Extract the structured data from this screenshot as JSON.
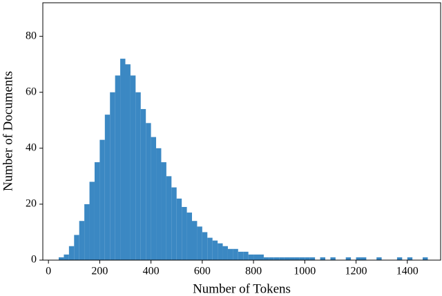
{
  "chart_data": {
    "type": "histogram",
    "xlabel": "Number of Tokens",
    "ylabel": "Number of Documents",
    "color": "#3b88c3",
    "bins": [
      40,
      60,
      80,
      100,
      120,
      140,
      160,
      180,
      200,
      220,
      240,
      260,
      280,
      300,
      320,
      340,
      360,
      380,
      400,
      420,
      440,
      460,
      480,
      500,
      520,
      540,
      560,
      580,
      600,
      620,
      640,
      660,
      680,
      700,
      720,
      740,
      760,
      780,
      800,
      820,
      840,
      860,
      880,
      900,
      920,
      940,
      960,
      980,
      1000,
      1020,
      1040,
      1060,
      1080,
      1100,
      1120,
      1140,
      1160,
      1180,
      1200,
      1220,
      1240,
      1260,
      1280,
      1300,
      1320,
      1340,
      1360,
      1380,
      1400,
      1420,
      1440,
      1460,
      1480
    ],
    "values": [
      1,
      2,
      5,
      9,
      14,
      20,
      28,
      35,
      43,
      52,
      60,
      66,
      72,
      70,
      66,
      60,
      54,
      49,
      44,
      40,
      35,
      30,
      26,
      22,
      19,
      17,
      14,
      12,
      10,
      8,
      7,
      6,
      5,
      4,
      4,
      3,
      3,
      2,
      2,
      2,
      1,
      1,
      1,
      1,
      1,
      1,
      1,
      1,
      1,
      1,
      0,
      1,
      0,
      1,
      0,
      0,
      1,
      0,
      1,
      1,
      0,
      0,
      1,
      0,
      0,
      0,
      1,
      0,
      1,
      0,
      0,
      1
    ],
    "xlim": [
      -22,
      1530
    ],
    "ylim": [
      0,
      92
    ],
    "xticks": [
      0,
      200,
      400,
      600,
      800,
      1000,
      1200,
      1400
    ],
    "yticks": [
      0,
      20,
      40,
      60,
      80
    ]
  }
}
